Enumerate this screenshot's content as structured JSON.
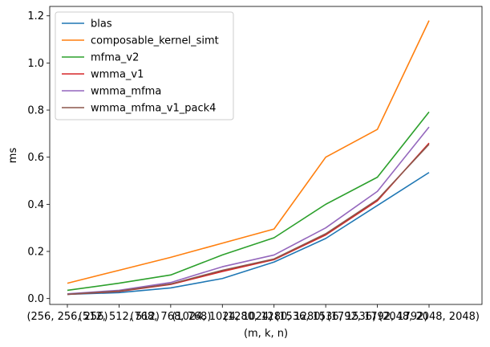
{
  "chart_data": {
    "type": "line",
    "title": "",
    "xlabel": "(m, k, n)",
    "ylabel": "ms",
    "categories": [
      "(256, 256, 256)",
      "(512, 512, 512)",
      "(768, 768, 768)",
      "(1024, 1024, 1024)",
      "(1280, 1280, 1280)",
      "(1536, 1536, 1536)",
      "(1792, 1792, 1792)",
      "(2048, 2048, 2048)"
    ],
    "ylim": [
      -0.025,
      1.24
    ],
    "yticks": [
      "0.0",
      "0.2",
      "0.4",
      "0.6",
      "0.8",
      "1.0",
      "1.2"
    ],
    "ytick_values": [
      0.0,
      0.2,
      0.4,
      0.6,
      0.8,
      1.0,
      1.2
    ],
    "grid": false,
    "legend_position": "top-left",
    "series": [
      {
        "name": "blas",
        "color": "#1f77b4",
        "values": [
          0.018,
          0.025,
          0.045,
          0.085,
          0.155,
          0.255,
          0.395,
          0.535
        ]
      },
      {
        "name": "composable_kernel_simt",
        "color": "#ff7f0e",
        "values": [
          0.065,
          0.12,
          0.175,
          0.235,
          0.295,
          0.6,
          0.718,
          1.18
        ]
      },
      {
        "name": "mfma_v2",
        "color": "#2ca02c",
        "values": [
          0.035,
          0.065,
          0.1,
          0.185,
          0.258,
          0.4,
          0.515,
          0.792
        ]
      },
      {
        "name": "wmma_v1",
        "color": "#d62728",
        "values": [
          0.018,
          0.03,
          0.06,
          0.115,
          0.165,
          0.27,
          0.415,
          0.66
        ]
      },
      {
        "name": "wmma_mfma",
        "color": "#9467bd",
        "values": [
          0.02,
          0.035,
          0.068,
          0.135,
          0.185,
          0.3,
          0.455,
          0.728
        ]
      },
      {
        "name": "wmma_mfma_v1_pack4",
        "color": "#8c564b",
        "values": [
          0.018,
          0.032,
          0.062,
          0.12,
          0.168,
          0.275,
          0.42,
          0.655
        ]
      }
    ]
  }
}
